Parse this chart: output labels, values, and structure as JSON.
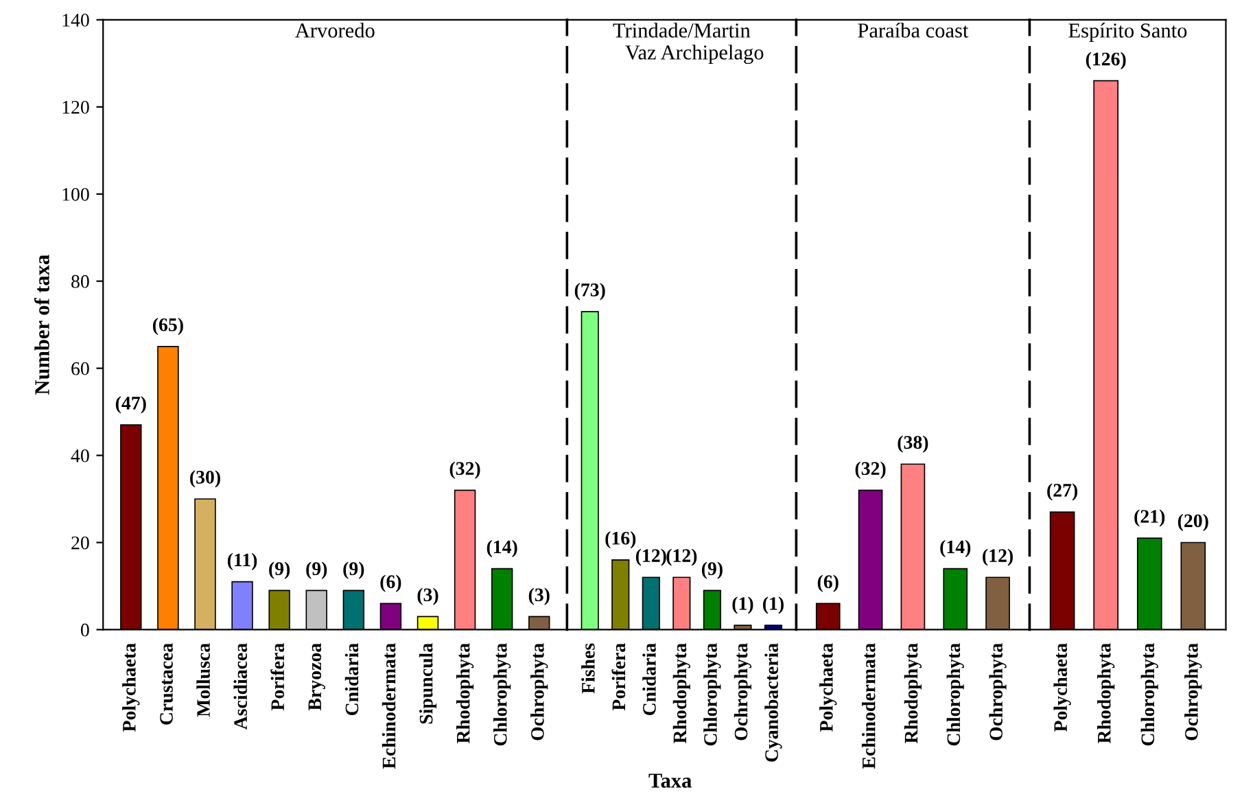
{
  "chart_data": [
    {
      "type": "bar",
      "title": "Arvoredo",
      "ylabel": "Number of taxa",
      "ylim": [
        0,
        140
      ],
      "yticks": [
        0,
        20,
        40,
        60,
        80,
        100,
        120,
        140
      ],
      "grid": false,
      "categories": [
        "Polychaeta",
        "Crustacea",
        "Mollusca",
        "Ascidiacea",
        "Porifera",
        "Bryozoa",
        "Cnidaria",
        "Echinodermata",
        "Sipuncula",
        "Rhodophyta",
        "Chlorophyta",
        "Ochrophyta"
      ],
      "values": [
        47,
        65,
        30,
        11,
        9,
        9,
        9,
        6,
        3,
        32,
        14,
        3
      ],
      "value_labels": [
        "(47)",
        "(65)",
        "(30)",
        "(11)",
        "(9)",
        "(9)",
        "(9)",
        "(6)",
        "(3)",
        "(32)",
        "(14)",
        "(3)"
      ],
      "colors": [
        "#7b0000",
        "#ff8000",
        "#d4b060",
        "#8080ff",
        "#808000",
        "#c0c0c0",
        "#007070",
        "#800080",
        "#ffff00",
        "#ff8080",
        "#008000",
        "#806040"
      ]
    },
    {
      "type": "bar",
      "title": "Trindade/Martin\n     Vaz Archipelago",
      "xlabel": "Taxa",
      "ylim": [
        0,
        140
      ],
      "tick_labels": "x",
      "grid": false,
      "categories": [
        "Fishes",
        "Porifera",
        "Cnidaria",
        "Rhodophyta",
        "Chlorophyta",
        "Ochrophyta",
        "Cyanobacteria"
      ],
      "values": [
        73,
        16,
        12,
        12,
        9,
        1,
        1
      ],
      "value_labels": [
        "(73)",
        "(16)",
        "(12)",
        "(12)",
        "(9)",
        "(1)",
        "(1)"
      ],
      "colors": [
        "#80ff80",
        "#808000",
        "#007070",
        "#ff8080",
        "#008000",
        "#806040",
        "#000080"
      ]
    },
    {
      "type": "bar",
      "title": "Paraíba coast",
      "ylim": [
        0,
        140
      ],
      "tick_labels": "x",
      "grid": false,
      "categories": [
        "Polychaeta",
        "Echinodermata",
        "Rhodophyta",
        "Chlorophyta",
        "Ochrophyta"
      ],
      "values": [
        6,
        32,
        38,
        14,
        12
      ],
      "value_labels": [
        "(6)",
        "(32)",
        "(38)",
        "(14)",
        "(12)"
      ],
      "colors": [
        "#7b0000",
        "#800080",
        "#ff8080",
        "#008000",
        "#806040"
      ]
    },
    {
      "type": "bar",
      "title": "Espírito Santo",
      "ylim": [
        0,
        140
      ],
      "tick_labels": "x",
      "grid": false,
      "categories": [
        "Polychaeta",
        "Rhodophyta",
        "Chlorophyta",
        "Ochrophyta"
      ],
      "values": [
        27,
        126,
        21,
        20
      ],
      "value_labels": [
        "(27)",
        "(126)",
        "(21)",
        "(20)"
      ],
      "colors": [
        "#7b0000",
        "#ff8080",
        "#008000",
        "#806040"
      ]
    }
  ]
}
